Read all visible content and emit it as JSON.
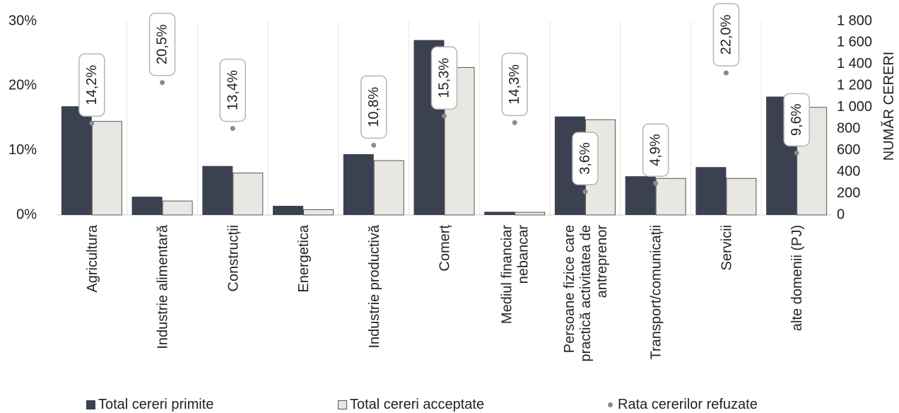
{
  "chart_data": {
    "type": "bar",
    "categories": [
      [
        "Agricultura"
      ],
      [
        "Industrie alimentară"
      ],
      [
        "Construcții"
      ],
      [
        "Energetica"
      ],
      [
        "Industrie productivă"
      ],
      [
        "Comerț"
      ],
      [
        "Mediul financiar",
        "nebancar"
      ],
      [
        "Persoane fizice care",
        "practică activitatea de",
        "antreprenor"
      ],
      [
        "Transport/comunicații"
      ],
      [
        "Servicii"
      ],
      [
        "alte domenii (PJ)"
      ]
    ],
    "series": [
      {
        "name": "Total cereri primite",
        "type": "bar",
        "axis": "right",
        "color": "#3b4151",
        "values": [
          1010,
          170,
          455,
          85,
          565,
          1625,
          30,
          915,
          360,
          445,
          1100
        ]
      },
      {
        "name": "Total cereri acceptate",
        "type": "bar",
        "axis": "right",
        "color": "#e8e7e1",
        "values": [
          870,
          130,
          390,
          50,
          505,
          1370,
          25,
          885,
          340,
          340,
          1000
        ]
      },
      {
        "name": "Rata cererilor refuzate",
        "type": "scatter",
        "axis": "left",
        "color": "#8a8a8a",
        "values": [
          14.2,
          20.5,
          13.4,
          null,
          10.8,
          15.3,
          14.3,
          3.6,
          4.9,
          22.0,
          9.6
        ],
        "labels": [
          "14,2%",
          "20,5%",
          "13,4%",
          "",
          "10,8%",
          "15,3%",
          "14,3%",
          "3,6%",
          "4,9%",
          "22,0%",
          "9,6%"
        ]
      }
    ],
    "y_left": {
      "ticks": [
        0,
        10,
        20,
        30
      ],
      "tick_labels": [
        "0%",
        "10%",
        "20%",
        "30%"
      ],
      "ylim": [
        0,
        30
      ]
    },
    "y_right": {
      "ticks": [
        0,
        200,
        400,
        600,
        800,
        1000,
        1200,
        1400,
        1600,
        1800
      ],
      "tick_labels": [
        "0",
        "200",
        "400",
        "600",
        "800",
        "1 000",
        "1 200",
        "1 400",
        "1 600",
        "1 800"
      ],
      "ylim": [
        0,
        1800
      ],
      "label": "NUMĂR CERERI"
    },
    "legend": {
      "position": "bottom"
    },
    "grid": false
  }
}
